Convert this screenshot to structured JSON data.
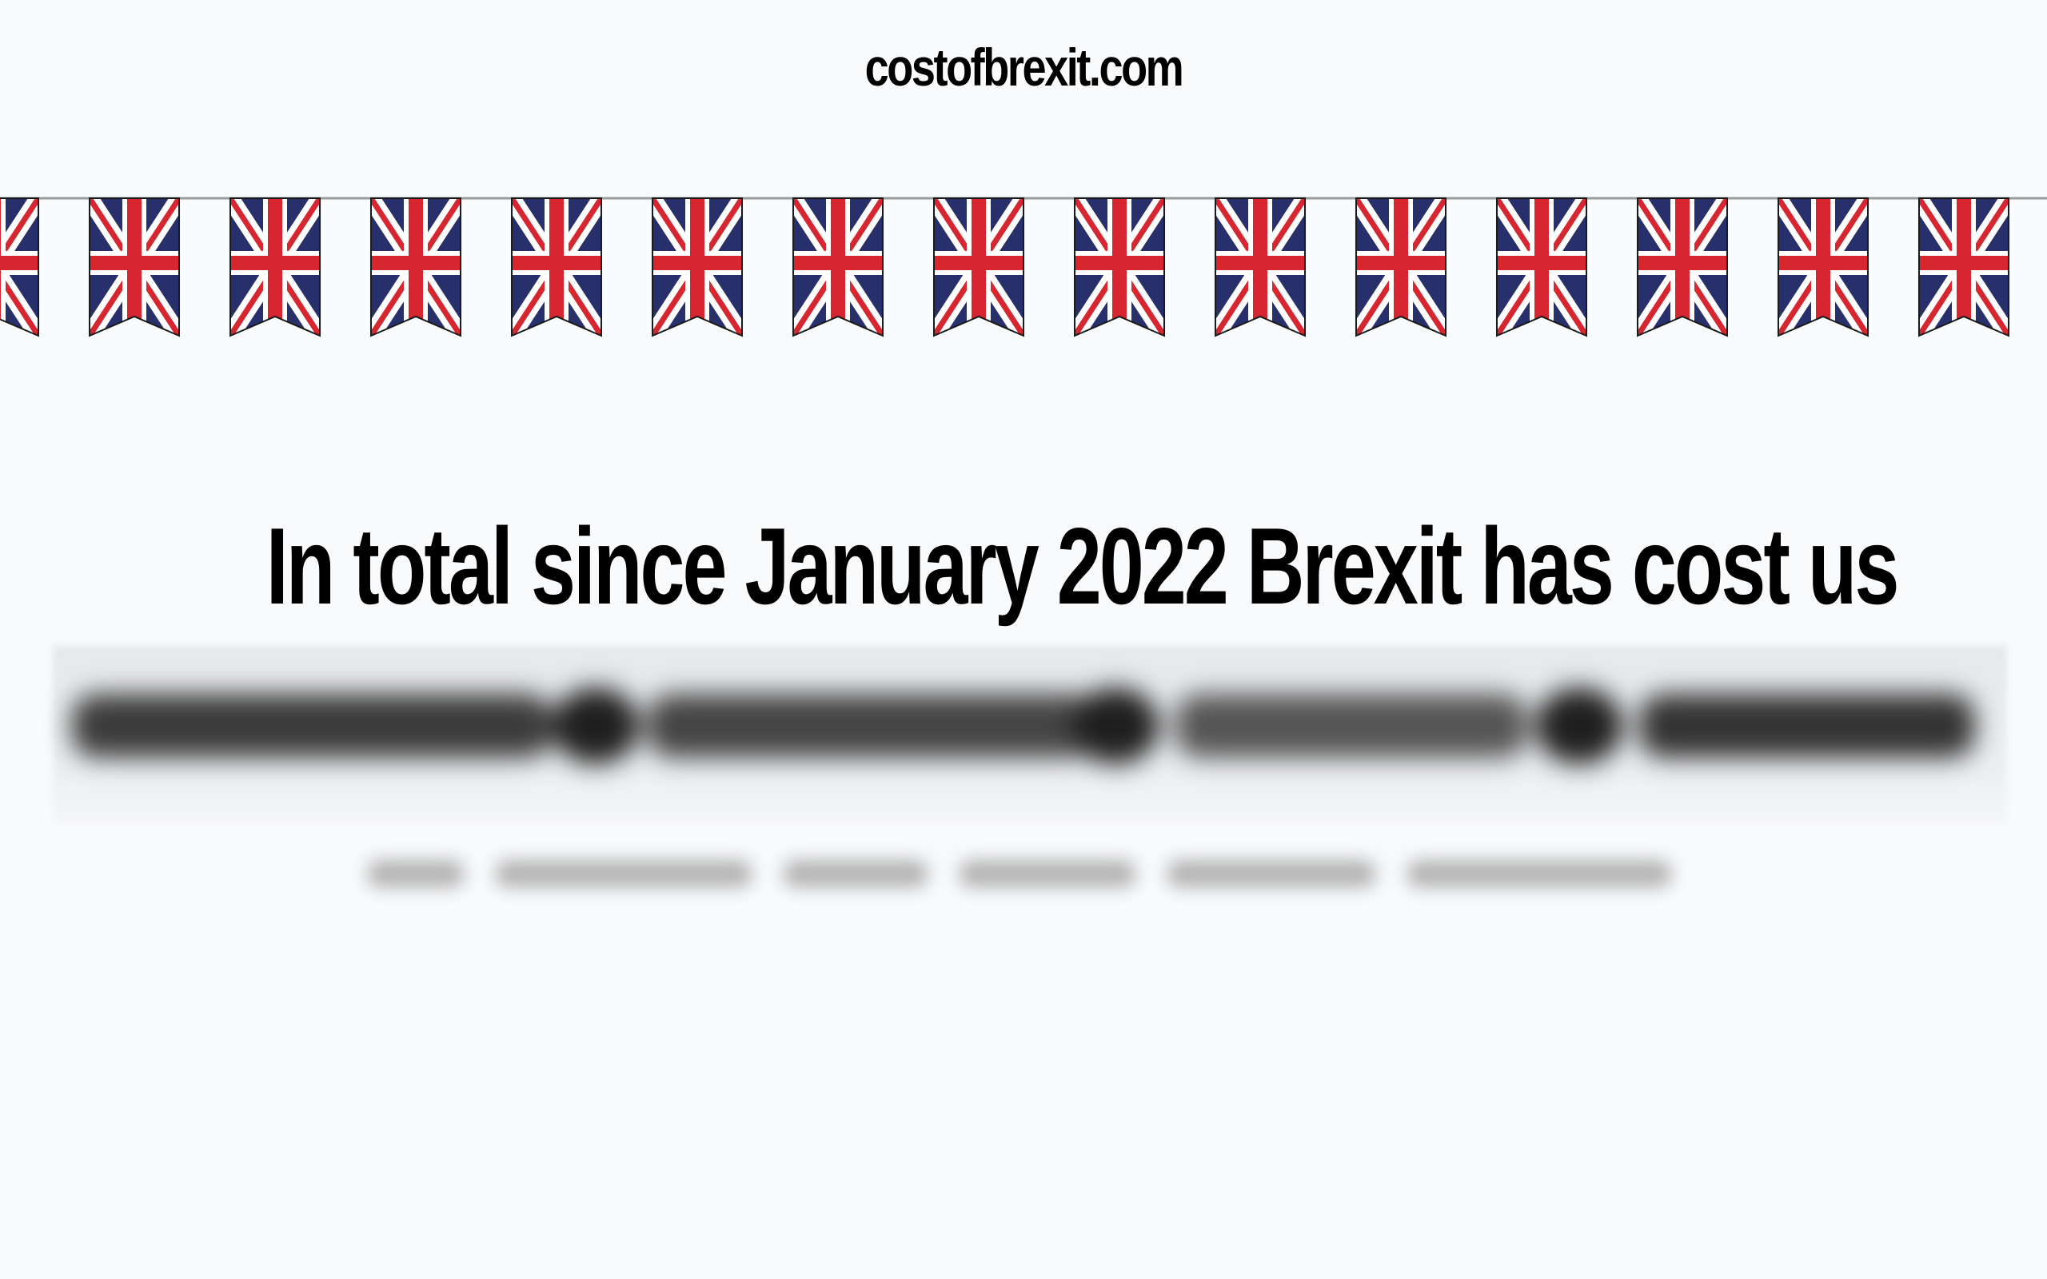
{
  "site": {
    "title": "costofbrexit.com"
  },
  "headline": {
    "text": "In total since January 2022 Brexit has cost us"
  },
  "bunting": {
    "icon": "union-jack-flag-icon",
    "flag_count": 15,
    "colors": {
      "blue": "#27306b",
      "red": "#d6262f",
      "white": "#ffffff",
      "string": "#9a9a9a"
    }
  },
  "obscured": {
    "amount_blurred": true,
    "subtitle_blurred": true
  },
  "theme": {
    "background": "#f8fafc",
    "text": "#000000"
  }
}
